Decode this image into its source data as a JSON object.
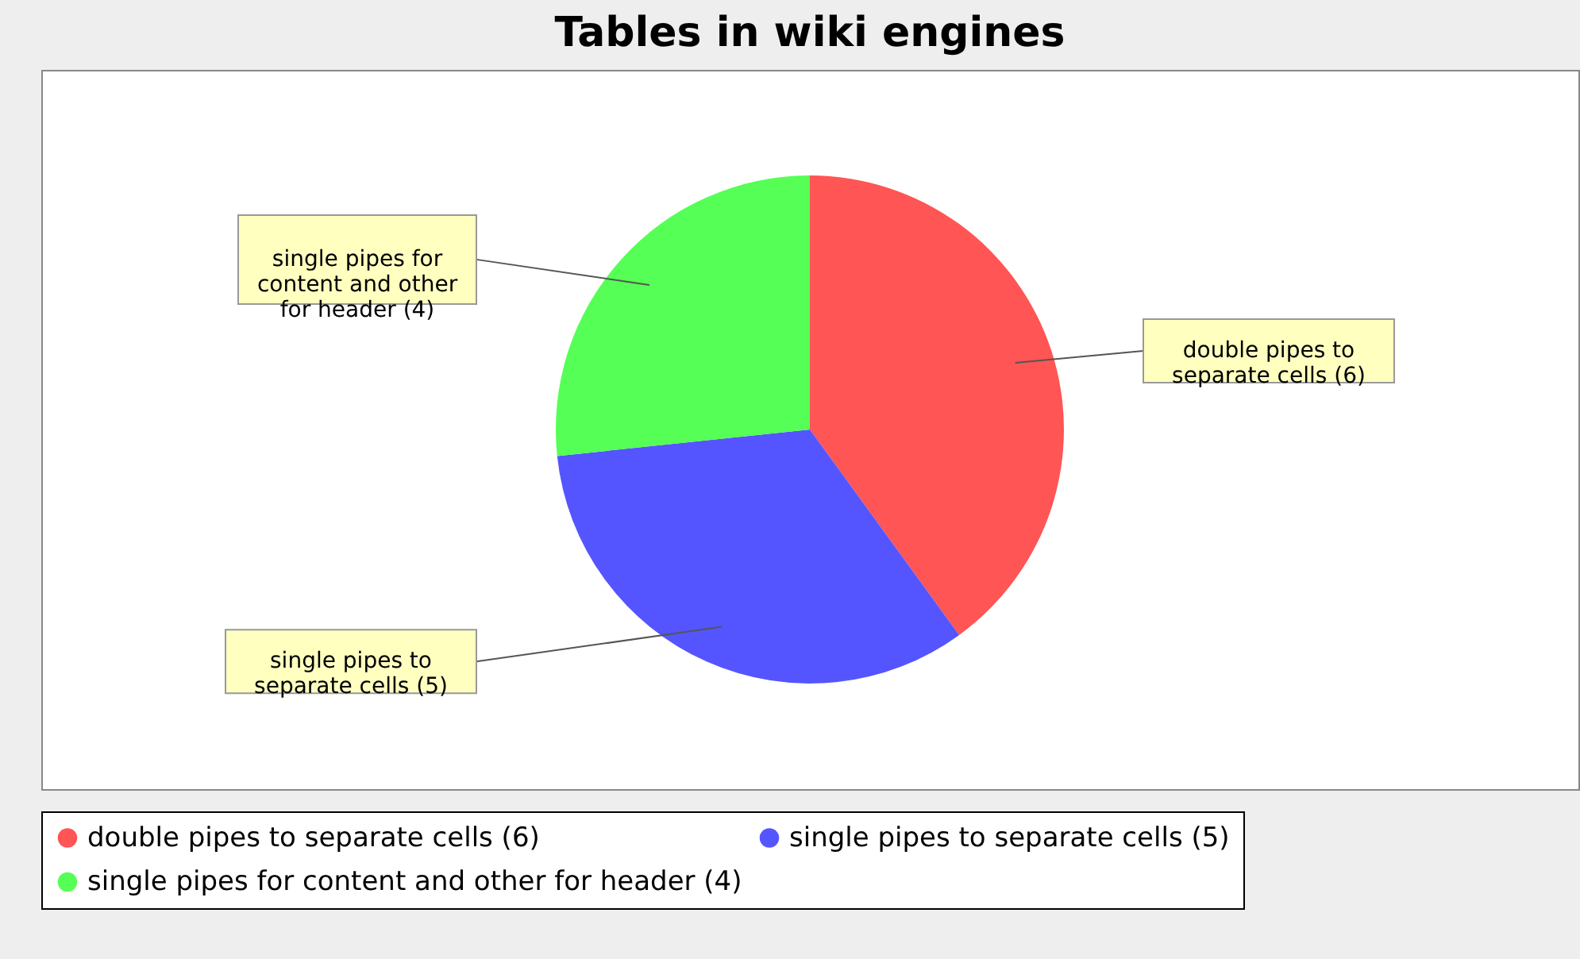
{
  "chart_data": {
    "type": "pie",
    "title": "Tables in wiki engines",
    "categories": [
      "double pipes to separate cells (6)",
      "single pipes to separate cells (5)",
      "single pipes for content and other for header (4)"
    ],
    "values": [
      6,
      5,
      4
    ],
    "colors": [
      "#ff5555",
      "#5555ff",
      "#55ff55"
    ],
    "legend": "bottom"
  }
}
